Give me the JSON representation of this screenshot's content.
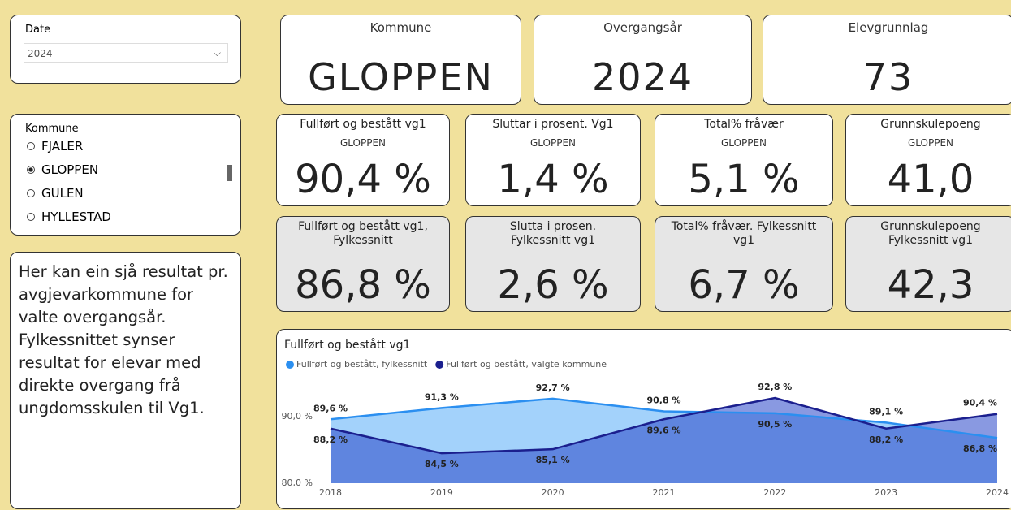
{
  "date_slicer": {
    "label": "Date",
    "value": "2024"
  },
  "kommune_slicer": {
    "label": "Kommune",
    "options": [
      "FJALER",
      "GLOPPEN",
      "GULEN",
      "HYLLESTAD"
    ],
    "selected": 1
  },
  "info_text": "Her kan ein sjå resultat pr. avgjevarkommune for valte overgangsår. Fylkessnittet synser resultat for elevar med direkte overgang frå ungdomsskulen til Vg1.",
  "header_cards": [
    {
      "title": "Kommune",
      "value": "GLOPPEN"
    },
    {
      "title": "Overgangsår",
      "value": "2024"
    },
    {
      "title": "Elevgrunnlag",
      "value": "73"
    }
  ],
  "cards": [
    {
      "title": "Fullført og bestått vg1",
      "subtitle": "GLOPPEN",
      "value": "90,4 %"
    },
    {
      "title": "Sluttar i prosent. Vg1",
      "subtitle": "GLOPPEN",
      "value": "1,4 %"
    },
    {
      "title": "Total% fråvær",
      "subtitle": "GLOPPEN",
      "value": "5,1 %"
    },
    {
      "title": "Grunnskulepoeng",
      "subtitle": "GLOPPEN",
      "value": "41,0"
    }
  ],
  "avg_cards": [
    {
      "title": "Fullført og bestått vg1,\nFylkessnitt",
      "value": "86,8 %"
    },
    {
      "title": "Slutta i prosen.\nFylkessnitt vg1",
      "value": "2,6 %"
    },
    {
      "title": "Total% fråvær. Fylkessnitt\nvg1",
      "value": "6,7 %"
    },
    {
      "title": "Grunnskulepoeng\nFylkessnitt vg1",
      "value": "42,3"
    }
  ],
  "chart_data": {
    "type": "area",
    "title": "Fullført og bestått vg1",
    "categories": [
      "2018",
      "2019",
      "2020",
      "2021",
      "2022",
      "2023",
      "2024"
    ],
    "series": [
      {
        "name": "Fullført og bestått, fylkessnitt",
        "color": "#2b8ff0",
        "fill": "#a3d2fb",
        "values": [
          89.6,
          91.3,
          92.7,
          90.8,
          90.5,
          89.1,
          86.8
        ],
        "value_labels": [
          "89,6 %",
          "91,3 %",
          "92,7 %",
          "90,8 %",
          "90,5 %",
          "89,1 %",
          "86,8 %"
        ]
      },
      {
        "name": "Fullført og bestått, valgte kommune",
        "color": "#1b1f8e",
        "fill": "rgba(40,70,200,0.55)",
        "values": [
          88.2,
          84.5,
          85.1,
          89.6,
          92.8,
          88.2,
          90.4
        ],
        "value_labels": [
          "88,2 %",
          "84,5 %",
          "85,1 %",
          "89,6 %",
          "92,8 %",
          "88,2 %",
          "90,4 %"
        ]
      }
    ],
    "ylim": [
      80,
      95
    ],
    "yticks": [
      {
        "value": 80,
        "label": "80,0 %"
      },
      {
        "value": 90,
        "label": "90,0 %"
      }
    ]
  }
}
